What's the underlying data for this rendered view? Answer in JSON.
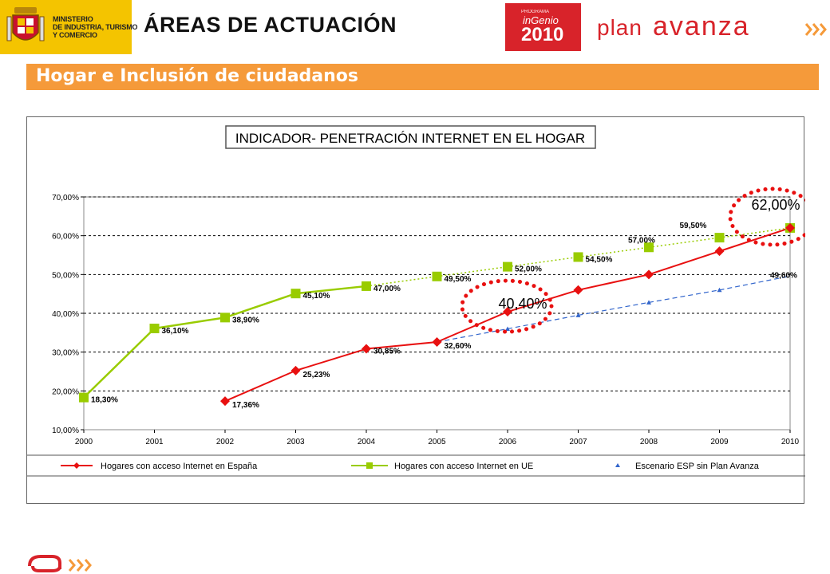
{
  "header": {
    "ministry_lines": [
      "MINISTERIO",
      "DE INDUSTRIA, TURISMO",
      "Y COMERCIO"
    ],
    "page_title": "ÁREAS DE ACTUACIÓN",
    "event_logo": {
      "small": "PROGRAMA",
      "word": "inGenio",
      "year": "2010"
    },
    "plan_logo": {
      "plan": "plan",
      "avanza": "avanza"
    }
  },
  "section": {
    "title": "Hogar e Inclusión de ciudadanos"
  },
  "colors": {
    "orange_bar": "#f59a3a",
    "spain": "#e81010",
    "eu": "#99cc00",
    "scenario": "#3366cc",
    "highlight": "#e81010"
  },
  "chart_data": {
    "type": "line",
    "title": "INDICADOR- PENETRACIÓN INTERNET EN EL HOGAR",
    "xlabel": "",
    "ylabel": "",
    "x": [
      "2000",
      "2001",
      "2002",
      "2003",
      "2004",
      "2005",
      "2006",
      "2007",
      "2008",
      "2009",
      "2010"
    ],
    "ylim": [
      10,
      70
    ],
    "y_ticks": [
      "10,00%",
      "20,00%",
      "30,00%",
      "40,00%",
      "50,00%",
      "60,00%",
      "70,00%"
    ],
    "grid": true,
    "legend_position": "bottom",
    "series": [
      {
        "name": "Hogares con acceso Internet en España",
        "color": "#e81010",
        "marker": "diamond",
        "values": [
          null,
          null,
          17.36,
          25.23,
          30.85,
          32.6,
          40.4,
          46,
          50,
          56,
          62
        ],
        "labels": [
          null,
          null,
          "17,36%",
          "25,23%",
          "30,85%",
          "32,60%",
          null,
          null,
          null,
          null,
          null
        ]
      },
      {
        "name": "Hogares con acceso Internet en UE",
        "color": "#99cc00",
        "marker": "square",
        "values": [
          18.3,
          36.1,
          38.9,
          45.1,
          47.0,
          49.5,
          52.0,
          54.5,
          57.0,
          59.5,
          62.0
        ],
        "labels": [
          "18,30%",
          "36,10%",
          "38,90%",
          "45,10%",
          "47,00%",
          "49,50%",
          "52,00%",
          "54,50%",
          "57,00%",
          "59,50%",
          null
        ]
      },
      {
        "name": "Escenario ESP sin Plan Avanza",
        "color": "#3366cc",
        "marker": "triangle",
        "values": [
          null,
          null,
          null,
          null,
          null,
          32.6,
          36.0,
          39.5,
          42.8,
          46.0,
          49.6
        ],
        "labels": [
          null,
          null,
          null,
          null,
          null,
          null,
          null,
          null,
          null,
          null,
          "49,60%"
        ]
      }
    ],
    "annotations": [
      {
        "text": "40,40%",
        "x": "2006",
        "y": 40.4
      },
      {
        "text": "62,00%",
        "x": "2010",
        "y": 62.0
      }
    ]
  }
}
